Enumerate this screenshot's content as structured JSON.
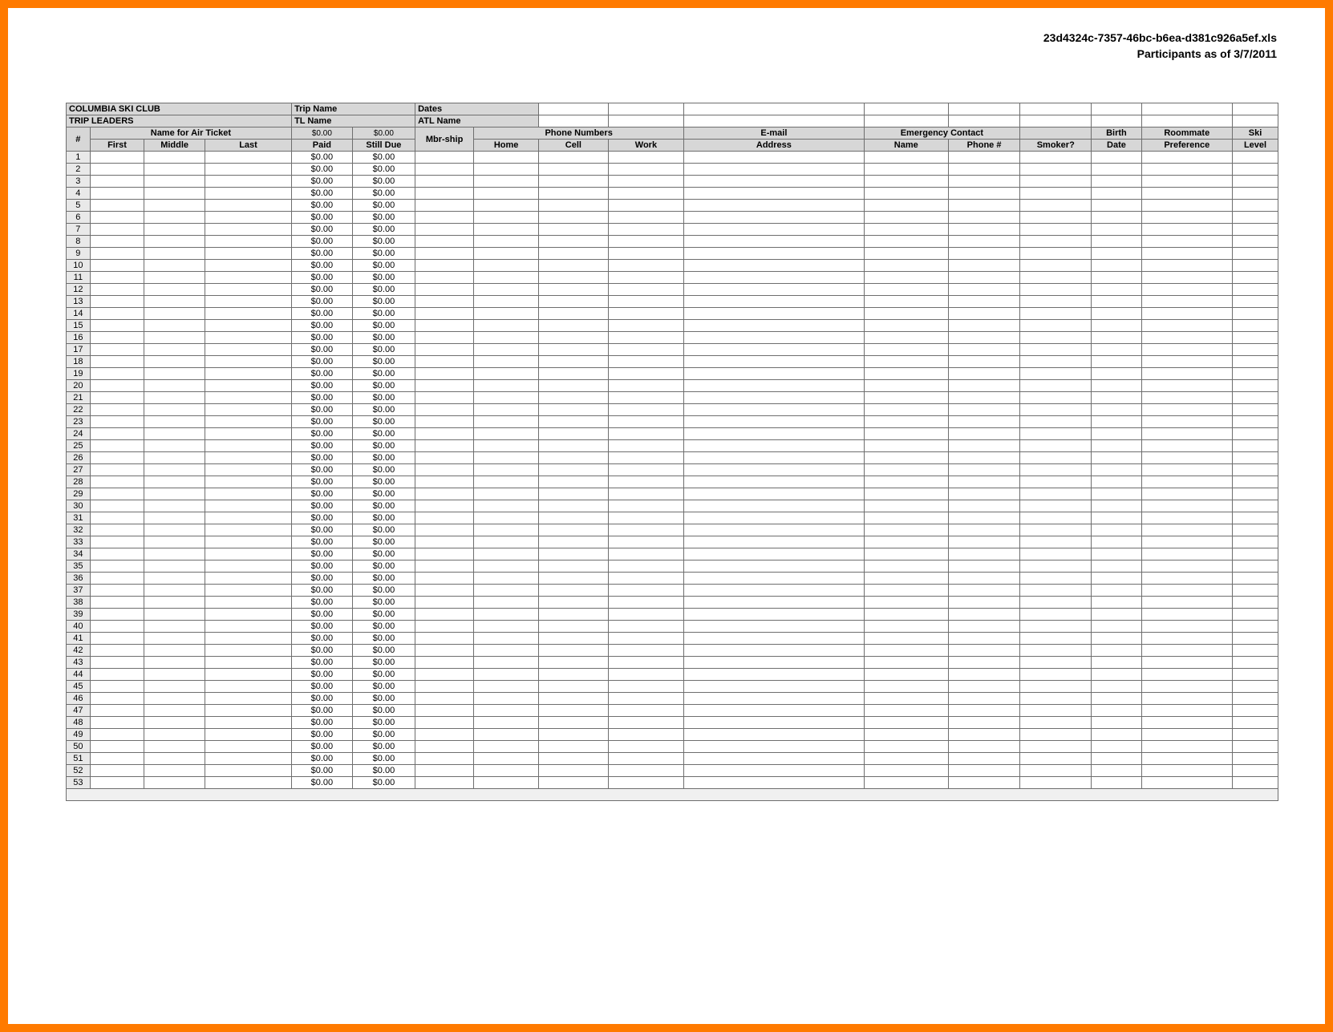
{
  "header": {
    "filename": "23d4324c-7357-46bc-b6ea-d381c926a5ef.xls",
    "subtitle": "Participants as of 3/7/2011"
  },
  "topRow": {
    "club": "COLUMBIA SKI CLUB",
    "tripNameLabel": "Trip Name",
    "datesLabel": "Dates"
  },
  "row2": {
    "tripLeaders": "TRIP LEADERS",
    "tlName": "TL Name",
    "atlName": "ATL Name"
  },
  "groupHeaders": {
    "numSymbol": "#",
    "nameForAirTicket": "Name for Air Ticket",
    "paidTotal": "$0.00",
    "dueTotal": "$0.00",
    "mbrShip": "Mbr-ship",
    "phoneNumbers": "Phone Numbers",
    "email": "E-mail",
    "emergencyContact": "Emergency Contact",
    "birth": "Birth",
    "roommate": "Roommate",
    "ski": "Ski"
  },
  "subHeaders": {
    "first": "First",
    "middle": "Middle",
    "last": "Last",
    "paid": "Paid",
    "stillDue": "Still Due",
    "home": "Home",
    "cell": "Cell",
    "work": "Work",
    "address": "Address",
    "name": "Name",
    "phoneNum": "Phone #",
    "smoker": "Smoker?",
    "date": "Date",
    "preference": "Preference",
    "level": "Level"
  },
  "rowCount": 53,
  "defaultPaid": "$0.00",
  "defaultDue": "$0.00",
  "colors": {
    "frameBorder": "#ff7a00",
    "gridBorder": "#6e6e6e",
    "headerGray": "#d7d7d7",
    "rowNumGray": "#e9e9e9",
    "white": "#ffffff"
  }
}
